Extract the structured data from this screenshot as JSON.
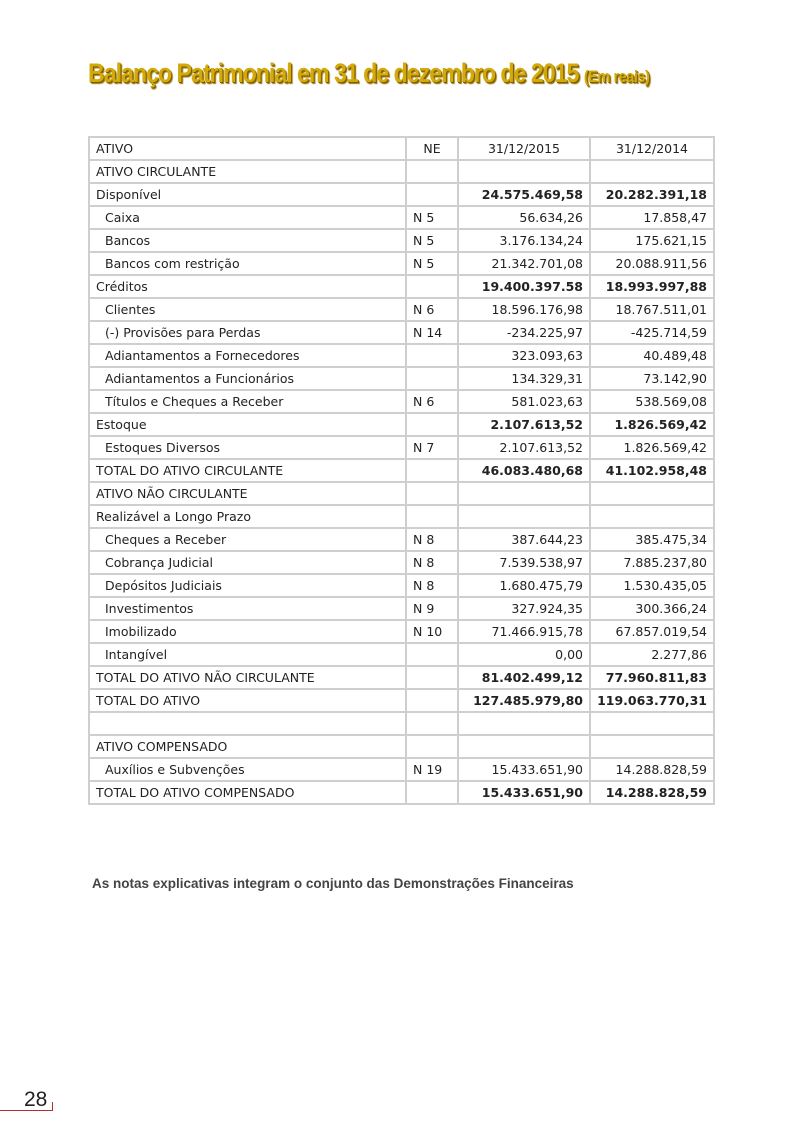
{
  "title": {
    "main": "Balanço Patrimonial em 31 de dezembro de 2015",
    "sub": "(Em reais)"
  },
  "table": {
    "header": [
      "ATIVO",
      "NE",
      "31/12/2015",
      "31/12/2014"
    ],
    "rows": [
      {
        "label": "ATIVO CIRCULANTE",
        "ne": "",
        "v2015": "",
        "v2014": "",
        "type": "section"
      },
      {
        "label": "Disponível",
        "ne": "",
        "v2015": "24.575.469,58",
        "v2014": "20.282.391,18",
        "type": "bold"
      },
      {
        "label": "Caixa",
        "ne": "N 5",
        "v2015": "56.634,26",
        "v2014": "17.858,47",
        "type": "sub"
      },
      {
        "label": "Bancos",
        "ne": "N 5",
        "v2015": "3.176.134,24",
        "v2014": "175.621,15",
        "type": "sub"
      },
      {
        "label": "Bancos com restrição",
        "ne": "N 5",
        "v2015": "21.342.701,08",
        "v2014": "20.088.911,56",
        "type": "sub"
      },
      {
        "label": "Créditos",
        "ne": "",
        "v2015": "19.400.397.58",
        "v2014": "18.993.997,88",
        "type": "bold"
      },
      {
        "label": "Clientes",
        "ne": "N 6",
        "v2015": "18.596.176,98",
        "v2014": "18.767.511,01",
        "type": "sub"
      },
      {
        "label": "(-) Provisões para Perdas",
        "ne": "N 14",
        "v2015": "-234.225,97",
        "v2014": "-425.714,59",
        "type": "sub"
      },
      {
        "label": "Adiantamentos a Fornecedores",
        "ne": "",
        "v2015": "323.093,63",
        "v2014": "40.489,48",
        "type": "sub"
      },
      {
        "label": "Adiantamentos a Funcionários",
        "ne": "",
        "v2015": "134.329,31",
        "v2014": "73.142,90",
        "type": "sub"
      },
      {
        "label": "Títulos e Cheques a Receber",
        "ne": "N 6",
        "v2015": "581.023,63",
        "v2014": "538.569,08",
        "type": "sub"
      },
      {
        "label": "Estoque",
        "ne": "",
        "v2015": "2.107.613,52",
        "v2014": "1.826.569,42",
        "type": "bold"
      },
      {
        "label": "Estoques Diversos",
        "ne": "N 7",
        "v2015": "2.107.613,52",
        "v2014": "1.826.569,42",
        "type": "sub"
      },
      {
        "label": "TOTAL DO ATIVO CIRCULANTE",
        "ne": "",
        "v2015": "46.083.480,68",
        "v2014": "41.102.958,48",
        "type": "bold"
      },
      {
        "label": "ATIVO NÃO CIRCULANTE",
        "ne": "",
        "v2015": "",
        "v2014": "",
        "type": "section"
      },
      {
        "label": "Realizável a Longo Prazo",
        "ne": "",
        "v2015": "",
        "v2014": "",
        "type": "section"
      },
      {
        "label": "Cheques a Receber",
        "ne": "N 8",
        "v2015": "387.644,23",
        "v2014": "385.475,34",
        "type": "sub"
      },
      {
        "label": "Cobrança Judicial",
        "ne": "N 8",
        "v2015": "7.539.538,97",
        "v2014": "7.885.237,80",
        "type": "sub"
      },
      {
        "label": "Depósitos Judiciais",
        "ne": "N 8",
        "v2015": "1.680.475,79",
        "v2014": "1.530.435,05",
        "type": "sub"
      },
      {
        "label": "Investimentos",
        "ne": "N 9",
        "v2015": "327.924,35",
        "v2014": "300.366,24",
        "type": "sub"
      },
      {
        "label": "Imobilizado",
        "ne": "N 10",
        "v2015": "71.466.915,78",
        "v2014": "67.857.019,54",
        "type": "sub"
      },
      {
        "label": "Intangível",
        "ne": "",
        "v2015": "0,00",
        "v2014": "2.277,86",
        "type": "sub"
      },
      {
        "label": "TOTAL DO ATIVO NÃO CIRCULANTE",
        "ne": "",
        "v2015": "81.402.499,12",
        "v2014": "77.960.811,83",
        "type": "bold"
      },
      {
        "label": "TOTAL DO ATIVO",
        "ne": "",
        "v2015": "127.485.979,80",
        "v2014": "119.063.770,31",
        "type": "bold"
      },
      {
        "label": "",
        "ne": "",
        "v2015": "",
        "v2014": "",
        "type": "section"
      },
      {
        "label": "ATIVO COMPENSADO",
        "ne": "",
        "v2015": "",
        "v2014": "",
        "type": "section"
      },
      {
        "label": "Auxílios e Subvenções",
        "ne": "N 19",
        "v2015": "15.433.651,90",
        "v2014": "14.288.828,59",
        "type": "sub"
      },
      {
        "label": "TOTAL DO ATIVO COMPENSADO",
        "ne": "",
        "v2015": "15.433.651,90",
        "v2014": "14.288.828,59",
        "type": "bold"
      }
    ]
  },
  "note": "As notas explicativas integram o conjunto das Demonstrações Financeiras",
  "page_number": "28",
  "colors": {
    "title": "#d4a90a",
    "border": "#cfcfcf",
    "page_line": "#b03030"
  }
}
